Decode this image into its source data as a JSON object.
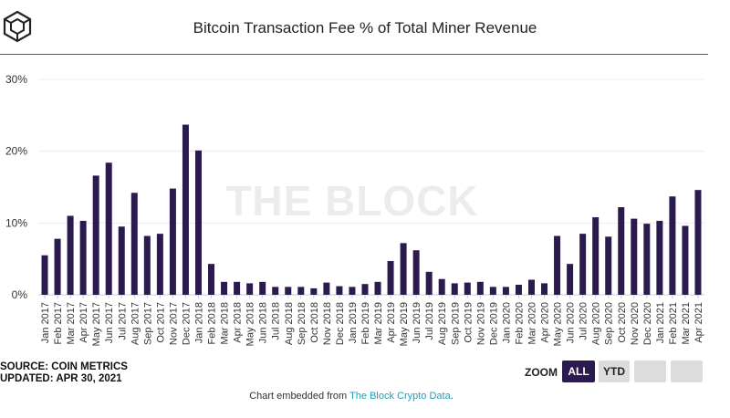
{
  "title": "Bitcoin Transaction Fee % of Total Miner Revenue",
  "watermark": "THE BLOCK",
  "source": {
    "line1": "SOURCE: COIN METRICS",
    "line2": "UPDATED: APR 30, 2021"
  },
  "zoom": {
    "label": "ZOOM",
    "buttons": [
      "ALL",
      "YTD",
      "",
      ""
    ],
    "active": "ALL"
  },
  "footer": {
    "prefix": "Chart embedded from ",
    "link": "The Block Crypto Data",
    "suffix": "."
  },
  "colors": {
    "bar": "#2b1a4e",
    "accent_rule": "#9b2fae",
    "link": "#1fa0b5"
  },
  "chart_data": {
    "type": "bar",
    "title": "Bitcoin Transaction Fee % of Total Miner Revenue",
    "ylim": [
      0,
      30
    ],
    "yticks": [
      "0%",
      "10%",
      "20%",
      "30%"
    ],
    "grid": true,
    "categories": [
      "Jan 2017",
      "Feb 2017",
      "Mar 2017",
      "Apr 2017",
      "May 2017",
      "Jun 2017",
      "Jul 2017",
      "Aug 2017",
      "Sep 2017",
      "Oct 2017",
      "Nov 2017",
      "Dec 2017",
      "Jan 2018",
      "Feb 2018",
      "Mar 2018",
      "Apr 2018",
      "May 2018",
      "Jun 2018",
      "Jul 2018",
      "Aug 2018",
      "Sep 2018",
      "Oct 2018",
      "Nov 2018",
      "Dec 2018",
      "Jan 2019",
      "Feb 2019",
      "Mar 2019",
      "Apr 2019",
      "May 2019",
      "Jun 2019",
      "Jul 2019",
      "Aug 2019",
      "Sep 2019",
      "Oct 2019",
      "Nov 2019",
      "Dec 2019",
      "Jan 2020",
      "Feb 2020",
      "Mar 2020",
      "Apr 2020",
      "May 2020",
      "Jun 2020",
      "Jul 2020",
      "Aug 2020",
      "Sep 2020",
      "Oct 2020",
      "Nov 2020",
      "Dec 2020",
      "Jan 2021",
      "Feb 2021",
      "Mar 2021",
      "Apr 2021"
    ],
    "values": [
      5.5,
      7.8,
      11.0,
      10.3,
      16.6,
      18.4,
      9.5,
      14.2,
      8.2,
      8.5,
      14.8,
      23.7,
      20.1,
      4.3,
      1.8,
      1.8,
      1.6,
      1.8,
      1.1,
      1.1,
      1.1,
      0.9,
      1.7,
      1.2,
      1.1,
      1.5,
      1.8,
      4.7,
      7.2,
      6.2,
      3.2,
      2.2,
      1.6,
      1.7,
      1.8,
      1.1,
      1.1,
      1.4,
      2.1,
      1.6,
      8.2,
      4.3,
      8.5,
      10.8,
      8.1,
      12.2,
      10.6,
      9.9,
      10.3,
      13.7,
      9.6,
      14.6
    ]
  }
}
